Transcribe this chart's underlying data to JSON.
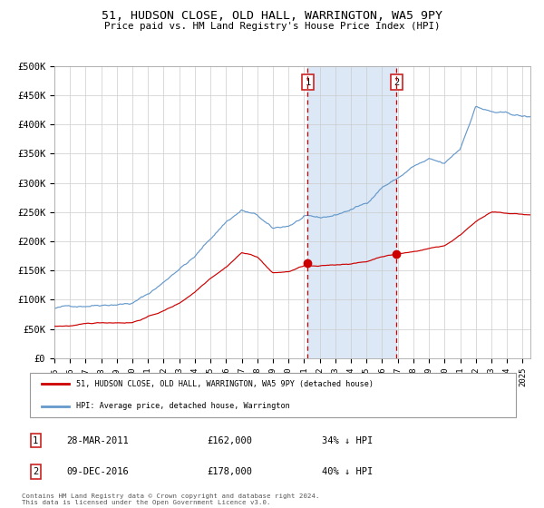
{
  "title": "51, HUDSON CLOSE, OLD HALL, WARRINGTON, WA5 9PY",
  "subtitle": "Price paid vs. HM Land Registry's House Price Index (HPI)",
  "legend_entry1": "51, HUDSON CLOSE, OLD HALL, WARRINGTON, WA5 9PY (detached house)",
  "legend_entry2": "HPI: Average price, detached house, Warrington",
  "annotation1_date": "28-MAR-2011",
  "annotation1_price": "£162,000",
  "annotation1_pct": "34% ↓ HPI",
  "annotation2_date": "09-DEC-2016",
  "annotation2_price": "£178,000",
  "annotation2_pct": "40% ↓ HPI",
  "footnote": "Contains HM Land Registry data © Crown copyright and database right 2024.\nThis data is licensed under the Open Government Licence v3.0.",
  "hpi_color": "#6699cc",
  "price_color": "#cc0000",
  "sale1_x": 2011.23,
  "sale1_y": 162000,
  "sale2_x": 2016.93,
  "sale2_y": 178000,
  "ylim": [
    0,
    500000
  ],
  "xlim_start": 1995,
  "xlim_end": 2025.5,
  "ytick_vals": [
    0,
    50000,
    100000,
    150000,
    200000,
    250000,
    300000,
    350000,
    400000,
    450000,
    500000
  ],
  "xtick_vals": [
    1995,
    1996,
    1997,
    1998,
    1999,
    2000,
    2001,
    2002,
    2003,
    2004,
    2005,
    2006,
    2007,
    2008,
    2009,
    2010,
    2011,
    2012,
    2013,
    2014,
    2015,
    2016,
    2017,
    2018,
    2019,
    2020,
    2021,
    2022,
    2023,
    2024,
    2025
  ],
  "shade_color": "#dce8f5",
  "hpi_anchors_x": [
    1995,
    1996,
    1997,
    1998,
    1999,
    2000,
    2001,
    2002,
    2003,
    2004,
    2005,
    2006,
    2007,
    2008,
    2009,
    2010,
    2011,
    2012,
    2013,
    2014,
    2015,
    2016,
    2017,
    2018,
    2019,
    2020,
    2021,
    2022,
    2023,
    2024,
    2025,
    2025.5
  ],
  "hpi_anchors_y": [
    85000,
    88000,
    91000,
    95000,
    98000,
    100000,
    115000,
    135000,
    160000,
    180000,
    210000,
    240000,
    260000,
    250000,
    225000,
    230000,
    245000,
    240000,
    245000,
    255000,
    265000,
    295000,
    310000,
    330000,
    340000,
    330000,
    355000,
    430000,
    420000,
    415000,
    410000,
    408000
  ],
  "price_anchors_x": [
    1995,
    1996,
    1997,
    1998,
    1999,
    2000,
    2001,
    2002,
    2003,
    2004,
    2005,
    2006,
    2007,
    2008,
    2009,
    2010,
    2011,
    2012,
    2013,
    2014,
    2015,
    2016,
    2017,
    2018,
    2019,
    2020,
    2021,
    2022,
    2023,
    2024,
    2025,
    2025.5
  ],
  "price_anchors_y": [
    55000,
    56000,
    58000,
    60000,
    61000,
    62000,
    72000,
    82000,
    95000,
    115000,
    140000,
    160000,
    185000,
    178000,
    150000,
    152000,
    162000,
    160000,
    162000,
    165000,
    168000,
    178000,
    182000,
    186000,
    192000,
    197000,
    215000,
    240000,
    255000,
    252000,
    250000,
    249000
  ]
}
